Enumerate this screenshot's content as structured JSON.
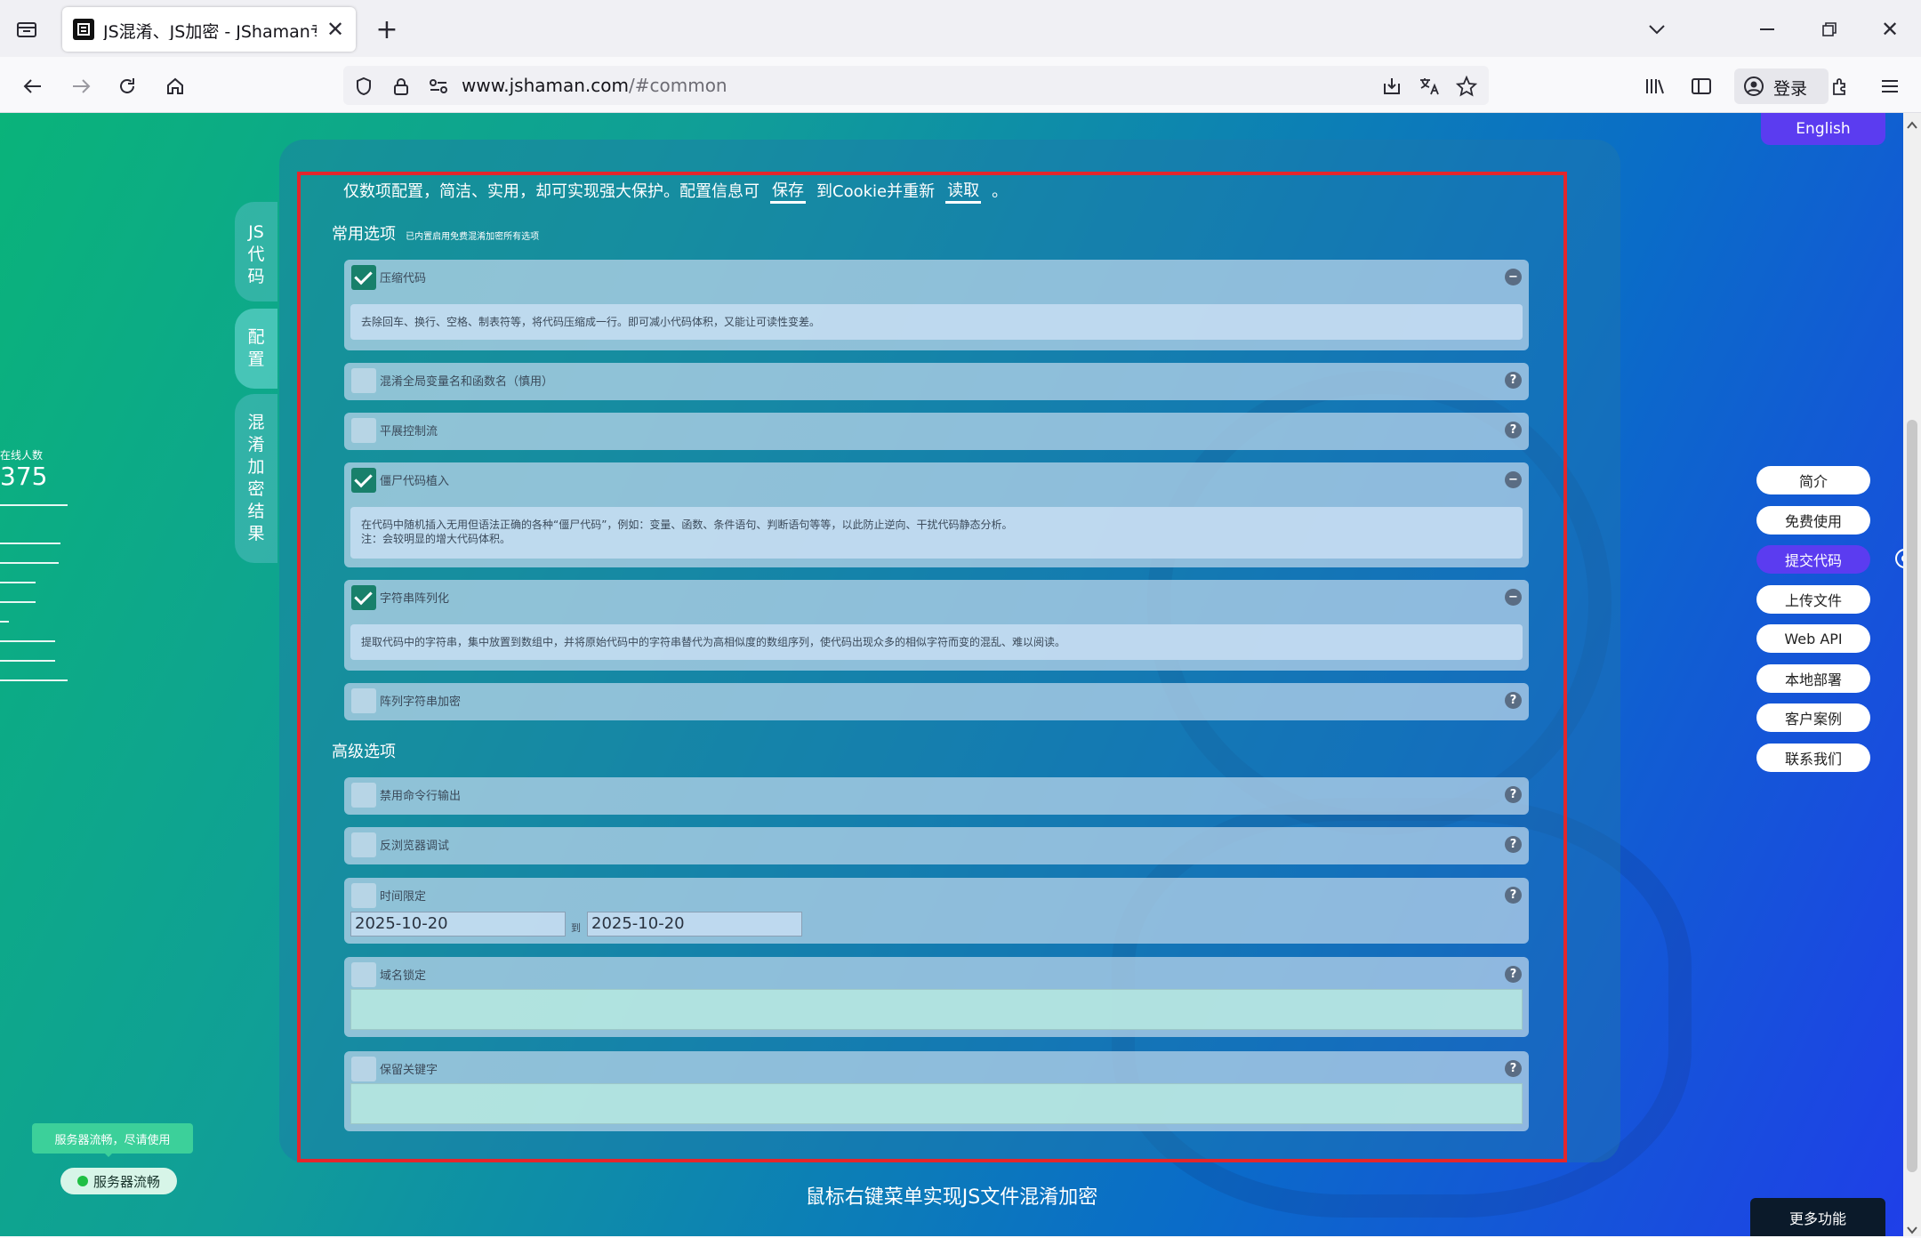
{
  "browser": {
    "tab_title": "JS混淆、JS加密 - JShaman专业",
    "url_host": "www.jshaman.com",
    "url_path": "/#common",
    "signin_label": "登录"
  },
  "page": {
    "english_button": "English",
    "side_tabs": [
      {
        "label": "JS代码"
      },
      {
        "label": "配置"
      },
      {
        "label": "混淆加密结果"
      }
    ],
    "online_label": "在线人数",
    "online_count": "375",
    "intro_text": "仅数项配置，简洁、实用，却可实现强大保护。配置信息可",
    "save_link": "保存",
    "intro_mid": "到Cookie并重新",
    "read_link": "读取",
    "intro_end": "。",
    "common_heading": "常用选项",
    "common_note": "已内置启用免费混淆加密所有选项",
    "common_options": [
      {
        "label": "压缩代码",
        "checked": true,
        "desc": "去除回车、换行、空格、制表符等，将代码压缩成一行。即可减小代码体积，又能让可读性变差。"
      },
      {
        "label": "混淆全局变量名和函数名（慎用）",
        "checked": false
      },
      {
        "label": "平展控制流",
        "checked": false
      },
      {
        "label": "僵尸代码植入",
        "checked": true,
        "desc1": "在代码中随机插入无用但语法正确的各种“僵尸代码”，例如：变量、函数、条件语句、判断语句等等，以此防止逆向、干扰代码静态分析。",
        "desc2": "注：会较明显的增大代码体积。"
      },
      {
        "label": "字符串阵列化",
        "checked": true,
        "desc": "提取代码中的字符串，集中放置到数组中，并将原始代码中的字符串替代为高相似度的数组序列，使代码出现众多的相似字符而变的混乱、难以阅读。"
      },
      {
        "label": "阵列字符串加密",
        "checked": false
      }
    ],
    "advanced_heading": "高级选项",
    "advanced_options": [
      {
        "label": "禁用命令行输出",
        "checked": false
      },
      {
        "label": "反浏览器调试",
        "checked": false
      },
      {
        "label": "时间限定",
        "checked": false,
        "date_from": "2025-10-20",
        "date_sep": "到",
        "date_to": "2025-10-20"
      },
      {
        "label": "域名锁定",
        "checked": false
      },
      {
        "label": "保留关键字",
        "checked": false
      }
    ],
    "help_glyph": "?",
    "collapse_glyph": "−",
    "right_nav": [
      "简介",
      "免费使用",
      "提交代码",
      "上传文件",
      "Web API",
      "本地部署",
      "客户案例",
      "联系我们"
    ],
    "server_tooltip": "服务器流畅，尽请使用",
    "server_status": "服务器流畅",
    "footer_text": "鼠标右键菜单实现JS文件混淆加密",
    "more_button": "更多功能"
  }
}
